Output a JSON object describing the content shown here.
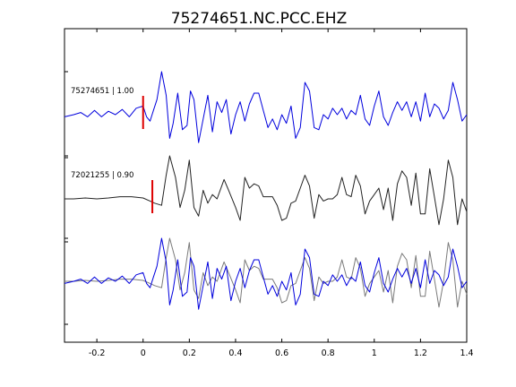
{
  "chart_data": {
    "type": "line",
    "title": "75274651.NC.PCC.EHZ",
    "xlabel": "",
    "ylabel": "",
    "xlim": [
      -0.34,
      1.4
    ],
    "xticks": [
      -0.2,
      0,
      0.2,
      0.4,
      0.6,
      0.8,
      1,
      1.2,
      1.4
    ],
    "xtick_labels": [
      "-0.2",
      "0",
      "0.2",
      "0.4",
      "0.6",
      "0.8",
      "1",
      "1.2",
      "1.4"
    ],
    "grid": false,
    "legend": "none",
    "colors": {
      "blue": "#0000dd",
      "dark": "#222222",
      "gray": "#7a7a7a",
      "pick": "#dd0000",
      "axes": "#000000"
    },
    "panels": [
      {
        "label": "75274651 | 1.00",
        "pick_time": 0.0,
        "series": [
          {
            "color": "blue",
            "x": [
              -0.34,
              -0.3,
              -0.27,
              -0.24,
              -0.21,
              -0.18,
              -0.15,
              -0.12,
              -0.09,
              -0.06,
              -0.03,
              0.0,
              0.015,
              0.03,
              0.045,
              0.06,
              0.08,
              0.1,
              0.115,
              0.13,
              0.15,
              0.17,
              0.19,
              0.205,
              0.22,
              0.24,
              0.26,
              0.28,
              0.3,
              0.32,
              0.34,
              0.36,
              0.38,
              0.4,
              0.42,
              0.44,
              0.46,
              0.48,
              0.5,
              0.52,
              0.54,
              0.56,
              0.58,
              0.6,
              0.62,
              0.64,
              0.66,
              0.68,
              0.7,
              0.72,
              0.74,
              0.76,
              0.78,
              0.8,
              0.82,
              0.84,
              0.86,
              0.88,
              0.9,
              0.92,
              0.94,
              0.96,
              0.98,
              1.0,
              1.02,
              1.04,
              1.06,
              1.08,
              1.1,
              1.12,
              1.14,
              1.16,
              1.18,
              1.2,
              1.22,
              1.24,
              1.26,
              1.28,
              1.3,
              1.32,
              1.34,
              1.36,
              1.38,
              1.4
            ],
            "y": [
              -0.05,
              0.0,
              0.05,
              -0.05,
              0.1,
              -0.05,
              0.08,
              0.0,
              0.12,
              -0.05,
              0.15,
              0.2,
              -0.05,
              -0.15,
              0.1,
              0.35,
              1.0,
              0.45,
              -0.55,
              -0.2,
              0.5,
              -0.35,
              -0.25,
              0.55,
              0.35,
              -0.65,
              -0.1,
              0.45,
              -0.4,
              0.3,
              0.05,
              0.35,
              -0.45,
              0.0,
              0.3,
              -0.15,
              0.25,
              0.5,
              0.5,
              0.1,
              -0.3,
              -0.1,
              -0.35,
              0.0,
              -0.2,
              0.2,
              -0.55,
              -0.3,
              0.75,
              0.55,
              -0.3,
              -0.35,
              0.0,
              -0.1,
              0.15,
              0.0,
              0.15,
              -0.1,
              0.1,
              0.0,
              0.45,
              -0.1,
              -0.25,
              0.2,
              0.55,
              -0.05,
              -0.25,
              0.05,
              0.3,
              0.1,
              0.3,
              -0.05,
              0.3,
              -0.15,
              0.5,
              -0.05,
              0.25,
              0.15,
              -0.1,
              0.1,
              0.75,
              0.35,
              -0.15,
              0.0
            ]
          }
        ]
      },
      {
        "label": "72021255 | 0.90",
        "pick_time": 0.04,
        "series": [
          {
            "color": "dark",
            "x": [
              -0.34,
              -0.3,
              -0.25,
              -0.2,
              -0.15,
              -0.1,
              -0.05,
              0.0,
              0.03,
              0.05,
              0.08,
              0.1,
              0.115,
              0.14,
              0.16,
              0.18,
              0.2,
              0.22,
              0.24,
              0.26,
              0.28,
              0.3,
              0.32,
              0.35,
              0.37,
              0.4,
              0.42,
              0.44,
              0.46,
              0.48,
              0.5,
              0.52,
              0.54,
              0.56,
              0.58,
              0.6,
              0.62,
              0.64,
              0.66,
              0.68,
              0.7,
              0.72,
              0.74,
              0.76,
              0.78,
              0.8,
              0.82,
              0.84,
              0.86,
              0.88,
              0.9,
              0.92,
              0.94,
              0.96,
              0.98,
              1.0,
              1.02,
              1.04,
              1.06,
              1.08,
              1.1,
              1.12,
              1.14,
              1.16,
              1.18,
              1.2,
              1.22,
              1.24,
              1.26,
              1.28,
              1.3,
              1.32,
              1.34,
              1.36,
              1.38,
              1.4
            ],
            "y": [
              0.0,
              0.0,
              0.02,
              0.0,
              0.02,
              0.05,
              0.05,
              0.02,
              -0.05,
              -0.1,
              -0.15,
              0.55,
              1.0,
              0.5,
              -0.2,
              0.2,
              0.9,
              -0.2,
              -0.4,
              0.2,
              -0.1,
              0.1,
              0.0,
              0.45,
              0.2,
              -0.2,
              -0.5,
              0.5,
              0.25,
              0.35,
              0.3,
              0.05,
              0.05,
              0.05,
              -0.15,
              -0.5,
              -0.45,
              -0.1,
              -0.05,
              0.25,
              0.55,
              0.3,
              -0.45,
              0.1,
              -0.05,
              0.0,
              0.0,
              0.1,
              0.5,
              0.1,
              0.05,
              0.55,
              0.3,
              -0.35,
              -0.05,
              0.1,
              0.25,
              -0.25,
              0.25,
              -0.5,
              0.35,
              0.65,
              0.5,
              -0.15,
              0.6,
              -0.35,
              -0.35,
              0.7,
              0.05,
              -0.6,
              0.0,
              0.9,
              0.5,
              -0.6,
              0.0,
              -0.3
            ]
          }
        ]
      },
      {
        "label": "",
        "pick_time": null,
        "series": [
          {
            "color": "gray",
            "x": [
              -0.34,
              -0.3,
              -0.25,
              -0.2,
              -0.15,
              -0.1,
              -0.05,
              0.0,
              0.03,
              0.05,
              0.08,
              0.1,
              0.115,
              0.14,
              0.16,
              0.18,
              0.2,
              0.22,
              0.24,
              0.26,
              0.28,
              0.3,
              0.32,
              0.35,
              0.37,
              0.4,
              0.42,
              0.44,
              0.46,
              0.48,
              0.5,
              0.52,
              0.54,
              0.56,
              0.58,
              0.6,
              0.62,
              0.64,
              0.66,
              0.68,
              0.7,
              0.72,
              0.74,
              0.76,
              0.78,
              0.8,
              0.82,
              0.84,
              0.86,
              0.88,
              0.9,
              0.92,
              0.94,
              0.96,
              0.98,
              1.0,
              1.02,
              1.04,
              1.06,
              1.08,
              1.1,
              1.12,
              1.14,
              1.16,
              1.18,
              1.2,
              1.22,
              1.24,
              1.26,
              1.28,
              1.3,
              1.32,
              1.34,
              1.36,
              1.38,
              1.4
            ],
            "y": [
              0.0,
              0.0,
              0.02,
              0.0,
              0.02,
              0.05,
              0.05,
              0.02,
              -0.05,
              -0.1,
              -0.15,
              0.55,
              1.0,
              0.5,
              -0.2,
              0.2,
              0.9,
              -0.2,
              -0.4,
              0.2,
              -0.1,
              0.1,
              0.0,
              0.45,
              0.2,
              -0.2,
              -0.5,
              0.5,
              0.25,
              0.35,
              0.3,
              0.05,
              0.05,
              0.05,
              -0.15,
              -0.5,
              -0.45,
              -0.1,
              -0.05,
              0.25,
              0.55,
              0.3,
              -0.45,
              0.1,
              -0.05,
              0.0,
              0.0,
              0.1,
              0.5,
              0.1,
              0.05,
              0.55,
              0.3,
              -0.35,
              -0.05,
              0.1,
              0.25,
              -0.25,
              0.25,
              -0.5,
              0.35,
              0.65,
              0.5,
              -0.15,
              0.6,
              -0.35,
              -0.35,
              0.7,
              0.05,
              -0.6,
              0.0,
              0.9,
              0.5,
              -0.6,
              0.0,
              -0.3
            ]
          },
          {
            "color": "blue",
            "x": [
              -0.34,
              -0.3,
              -0.27,
              -0.24,
              -0.21,
              -0.18,
              -0.15,
              -0.12,
              -0.09,
              -0.06,
              -0.03,
              0.0,
              0.015,
              0.03,
              0.045,
              0.06,
              0.08,
              0.1,
              0.115,
              0.13,
              0.15,
              0.17,
              0.19,
              0.205,
              0.22,
              0.24,
              0.26,
              0.28,
              0.3,
              0.32,
              0.34,
              0.36,
              0.38,
              0.4,
              0.42,
              0.44,
              0.46,
              0.48,
              0.5,
              0.52,
              0.54,
              0.56,
              0.58,
              0.6,
              0.62,
              0.64,
              0.66,
              0.68,
              0.7,
              0.72,
              0.74,
              0.76,
              0.78,
              0.8,
              0.82,
              0.84,
              0.86,
              0.88,
              0.9,
              0.92,
              0.94,
              0.96,
              0.98,
              1.0,
              1.02,
              1.04,
              1.06,
              1.08,
              1.1,
              1.12,
              1.14,
              1.16,
              1.18,
              1.2,
              1.22,
              1.24,
              1.26,
              1.28,
              1.3,
              1.32,
              1.34,
              1.36,
              1.38,
              1.4
            ],
            "y": [
              -0.05,
              0.0,
              0.05,
              -0.05,
              0.1,
              -0.05,
              0.08,
              0.0,
              0.12,
              -0.05,
              0.15,
              0.2,
              -0.05,
              -0.15,
              0.1,
              0.35,
              1.0,
              0.45,
              -0.55,
              -0.2,
              0.5,
              -0.35,
              -0.25,
              0.55,
              0.35,
              -0.65,
              -0.1,
              0.45,
              -0.4,
              0.3,
              0.05,
              0.35,
              -0.45,
              0.0,
              0.3,
              -0.15,
              0.25,
              0.5,
              0.5,
              0.1,
              -0.3,
              -0.1,
              -0.35,
              0.0,
              -0.2,
              0.2,
              -0.55,
              -0.3,
              0.75,
              0.55,
              -0.3,
              -0.35,
              0.0,
              -0.1,
              0.15,
              0.0,
              0.15,
              -0.1,
              0.1,
              0.0,
              0.45,
              -0.1,
              -0.25,
              0.2,
              0.55,
              -0.05,
              -0.25,
              0.05,
              0.3,
              0.1,
              0.3,
              -0.05,
              0.3,
              -0.15,
              0.5,
              -0.05,
              0.25,
              0.15,
              -0.1,
              0.1,
              0.75,
              0.35,
              -0.15,
              0.0
            ]
          }
        ]
      }
    ]
  }
}
